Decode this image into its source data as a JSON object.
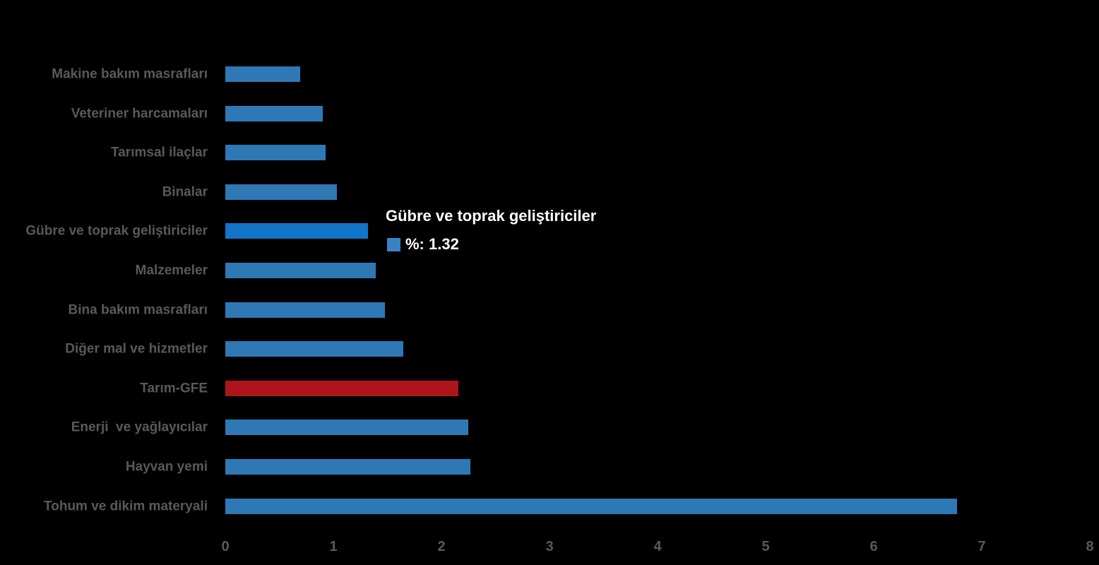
{
  "chart_data": {
    "type": "bar",
    "orientation": "horizontal",
    "title": "",
    "xlabel": "",
    "ylabel": "",
    "xlim": [
      0,
      8
    ],
    "x_ticks": [
      "0",
      "1",
      "2",
      "3",
      "4",
      "5",
      "6",
      "7",
      "8"
    ],
    "grid": false,
    "legend_position": "tooltip",
    "unit": "%",
    "categories": [
      "Makine bakım masrafları",
      "Veteriner harcamaları",
      "Tarımsal ilaçlar",
      "Binalar",
      "Gübre ve toprak geliştiriciler",
      "Malzemeler",
      "Bina bakım masrafları",
      "Diğer mal ve hizmetler",
      "Tarım-GFE",
      "Enerji  ve yağlayıcılar",
      "Hayvan yemi",
      "Tohum ve dikim materyali"
    ],
    "values": [
      0.69,
      0.9,
      0.93,
      1.03,
      1.32,
      1.39,
      1.48,
      1.65,
      2.16,
      2.25,
      2.27,
      6.77
    ],
    "point_styles": [
      "regular",
      "regular",
      "regular",
      "regular",
      "highlight",
      "regular",
      "regular",
      "regular",
      "accent",
      "regular",
      "regular",
      "regular"
    ]
  },
  "tooltip": {
    "title": "Gübre ve toprak geliştiriciler",
    "value_label": "%: 1.32",
    "swatch_color": "#3B82C4"
  },
  "colors": {
    "bg": "#000000",
    "bar-regular": "#2E79B5",
    "bar-highlight": "#1176C8",
    "bar-accent": "#AE151B",
    "label-text": "#595959",
    "axis-text": "#595959",
    "tooltip-text": "#FFFFFF"
  }
}
